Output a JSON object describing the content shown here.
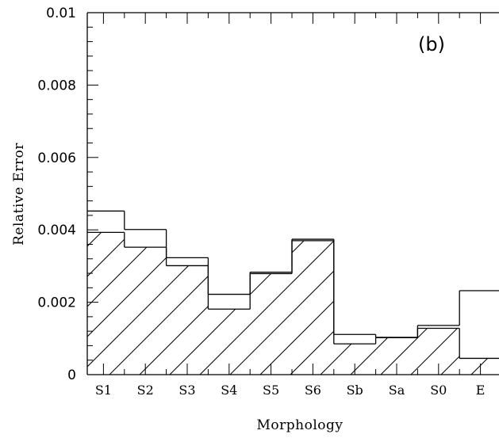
{
  "chart_data": {
    "type": "bar",
    "title": "",
    "panel_label": "(b)",
    "xlabel": "Morphology",
    "ylabel": "Relative Error",
    "categories": [
      "S1",
      "S2",
      "S3",
      "S4",
      "S5",
      "S6",
      "Sb",
      "Sa",
      "S0",
      "E"
    ],
    "ylim": [
      0,
      0.01
    ],
    "yticks": [
      0,
      0.002,
      0.004,
      0.006,
      0.008,
      0.01
    ],
    "ytick_labels": [
      "0",
      "0.002",
      "0.004",
      "0.006",
      "0.008",
      "0.01"
    ],
    "series": [
      {
        "style": "outline",
        "values": [
          0.00452,
          0.00401,
          0.00323,
          0.00222,
          0.00283,
          0.00374,
          0.00111,
          0.00103,
          0.00136,
          0.00232
        ]
      },
      {
        "style": "hatched",
        "values": [
          0.00393,
          0.00352,
          0.00301,
          0.00181,
          0.00279,
          0.0037,
          0.00085,
          0.00102,
          0.00128,
          0.00045
        ]
      }
    ],
    "grid": false,
    "legend": "none"
  }
}
